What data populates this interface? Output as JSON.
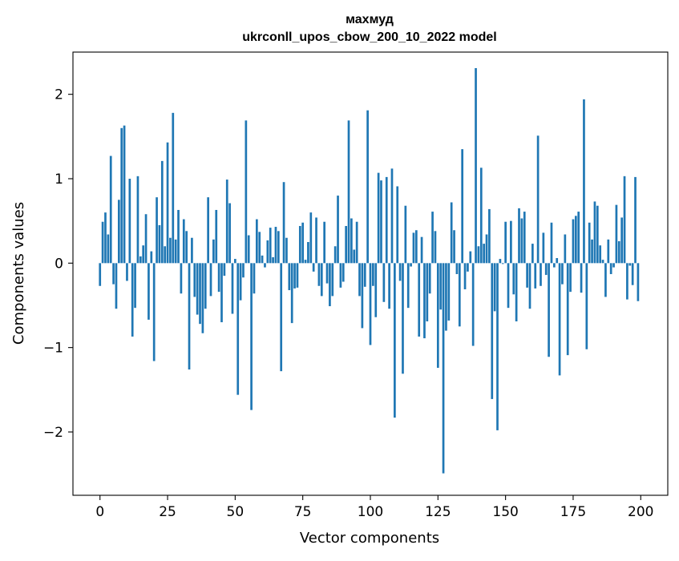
{
  "chart_data": {
    "type": "bar",
    "title_lines": [
      "махмуд",
      "ukrconll_upos_cbow_200_10_2022 model"
    ],
    "xlabel": "Vector components",
    "ylabel": "Components values",
    "xlim": [
      -10,
      210
    ],
    "ylim": [
      -2.75,
      2.5
    ],
    "xticks": [
      0,
      25,
      50,
      75,
      100,
      125,
      150,
      175,
      200
    ],
    "xtick_labels": [
      "0",
      "25",
      "50",
      "75",
      "100",
      "125",
      "150",
      "175",
      "200"
    ],
    "yticks": [
      -2,
      -1,
      0,
      1,
      2
    ],
    "ytick_labels": [
      "−2",
      "−1",
      "0",
      "1",
      "2"
    ],
    "grid": false,
    "bar_color": "#1f77b4",
    "values": [
      -0.27,
      0.49,
      0.6,
      0.34,
      1.27,
      -0.25,
      -0.54,
      0.75,
      1.6,
      1.63,
      -0.21,
      1.0,
      -0.87,
      -0.53,
      1.03,
      0.08,
      0.21,
      0.58,
      -0.67,
      0.14,
      -1.16,
      0.78,
      0.45,
      1.21,
      0.2,
      1.43,
      0.3,
      1.78,
      0.28,
      0.63,
      -0.36,
      0.52,
      0.38,
      -1.26,
      0.3,
      -0.4,
      -0.61,
      -0.72,
      -0.83,
      -0.54,
      0.78,
      -0.39,
      0.28,
      0.63,
      -0.34,
      -0.7,
      -0.15,
      0.99,
      0.71,
      -0.6,
      0.05,
      -1.56,
      -0.44,
      -0.17,
      1.69,
      0.33,
      -1.74,
      -0.36,
      0.52,
      0.37,
      0.09,
      -0.05,
      0.27,
      0.42,
      0.07,
      0.43,
      0.38,
      -1.28,
      0.96,
      0.3,
      -0.32,
      -0.71,
      -0.3,
      -0.29,
      0.44,
      0.48,
      0.04,
      0.25,
      0.6,
      -0.1,
      0.54,
      -0.27,
      -0.39,
      0.49,
      -0.24,
      -0.51,
      -0.39,
      0.2,
      0.8,
      -0.29,
      -0.22,
      0.44,
      1.69,
      0.53,
      0.16,
      0.49,
      -0.39,
      -0.77,
      -0.28,
      1.81,
      -0.97,
      -0.27,
      -0.64,
      1.07,
      0.98,
      -0.46,
      1.02,
      -0.54,
      1.12,
      -1.83,
      0.91,
      -0.21,
      -1.31,
      0.68,
      -0.53,
      -0.04,
      0.36,
      0.39,
      -0.87,
      0.31,
      -0.89,
      -0.69,
      -0.36,
      0.61,
      0.38,
      -1.24,
      -0.55,
      -2.49,
      -0.8,
      -0.68,
      0.72,
      0.39,
      -0.13,
      -0.75,
      1.35,
      -0.31,
      -0.1,
      0.14,
      -0.98,
      2.31,
      0.2,
      1.13,
      0.23,
      0.34,
      0.64,
      -1.61,
      -0.57,
      -1.98,
      0.05,
      -0.01,
      0.49,
      -0.53,
      0.5,
      -0.37,
      -0.69,
      0.65,
      0.53,
      0.61,
      -0.29,
      -0.54,
      0.23,
      -0.3,
      1.51,
      -0.27,
      0.36,
      -0.14,
      -1.11,
      0.48,
      -0.05,
      0.06,
      -1.33,
      -0.25,
      0.34,
      -1.09,
      -0.34,
      0.52,
      0.56,
      0.61,
      -0.35,
      1.94,
      -1.02,
      0.48,
      0.28,
      0.73,
      0.68,
      0.21,
      0.04,
      -0.4,
      0.28,
      -0.13,
      -0.05,
      0.69,
      0.26,
      0.54,
      1.03,
      -0.43,
      -0.03,
      -0.26,
      1.02,
      -0.45
    ]
  }
}
